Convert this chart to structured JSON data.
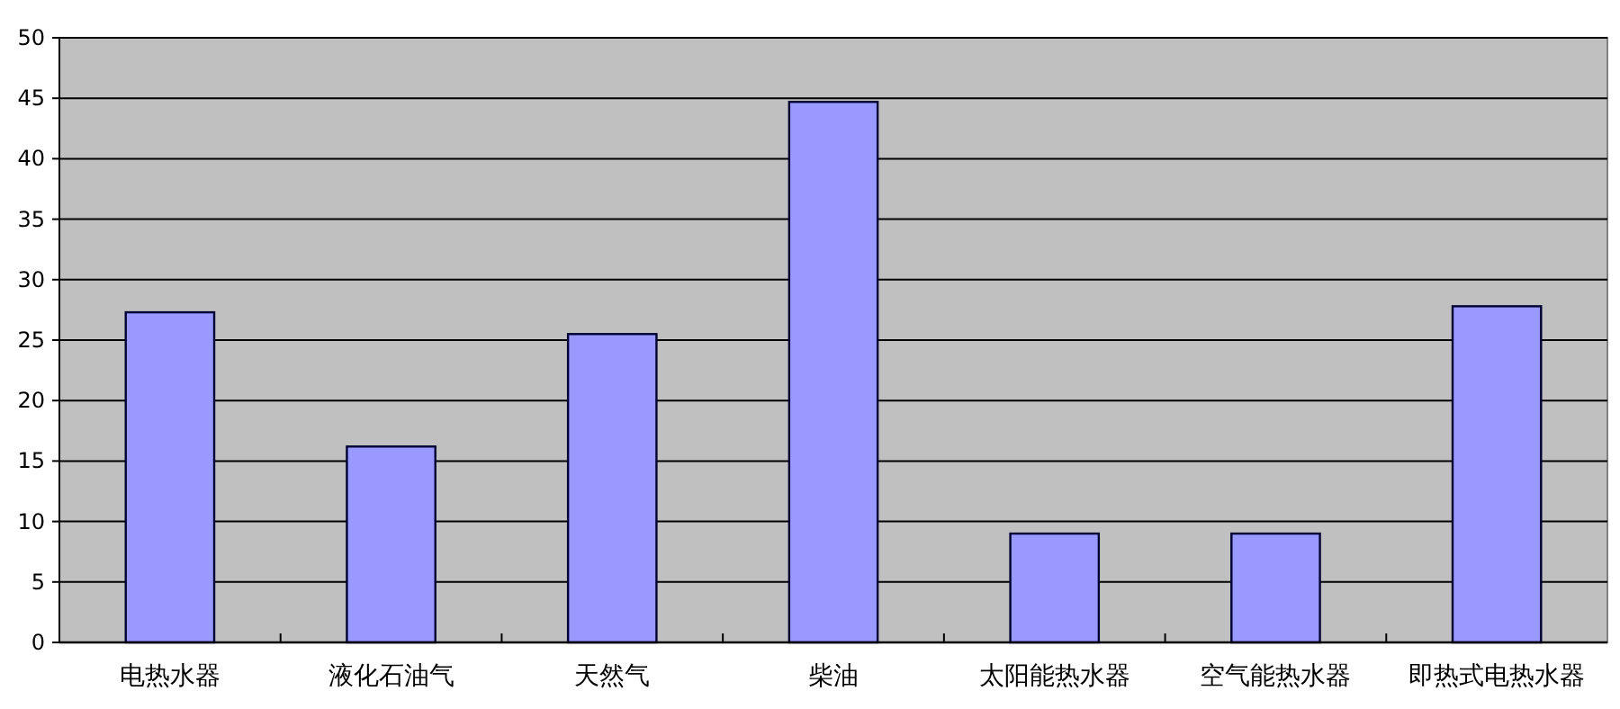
{
  "chart_data": {
    "type": "bar",
    "categories": [
      "电热水器",
      "液化石油气",
      "天然气",
      "柴油",
      "太阳能热水器",
      "空气能热水器",
      "即热式电热水器"
    ],
    "values": [
      27.3,
      16.2,
      25.5,
      44.7,
      9.0,
      9.0,
      27.8
    ],
    "color": "#9999ff",
    "ylim": [
      0,
      50
    ],
    "yticks": [
      0,
      5,
      10,
      15,
      20,
      25,
      30,
      35,
      40,
      45,
      50
    ],
    "grid": "y",
    "legend": false
  }
}
